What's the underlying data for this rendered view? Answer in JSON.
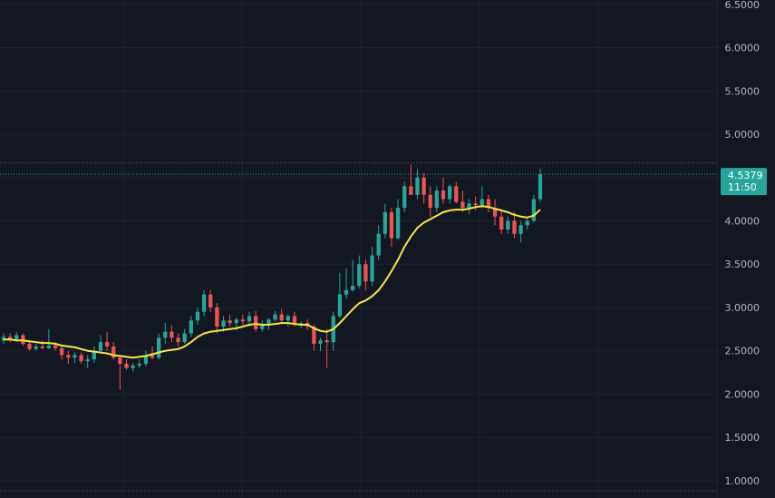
{
  "chart_data": {
    "type": "candlestick",
    "ylim": [
      0.8,
      6.55
    ],
    "y_ticks": [
      "6.5000",
      "6.0000",
      "5.5000",
      "5.0000",
      "4.5000",
      "4.0000",
      "3.5000",
      "3.0000",
      "2.5000",
      "2.0000",
      "1.5000",
      "1.0000"
    ],
    "y_tick_values": [
      6.5,
      6.0,
      5.5,
      5.0,
      4.5,
      4.0,
      3.5,
      3.0,
      2.5,
      2.0,
      1.5,
      1.0
    ],
    "colors": {
      "background": "#131722",
      "grid": "#1e222d",
      "up": "#26a69a",
      "down": "#ef5350",
      "moving_average": "#f5e642",
      "axis_text": "#b2b5be",
      "last_price_badge": "#26a69a"
    },
    "last_price": {
      "value": 4.5379,
      "label": "4.5379",
      "countdown": "11:50"
    },
    "reference_line": 4.67,
    "candles": [
      [
        2.62,
        2.7,
        2.58,
        2.66
      ],
      [
        2.66,
        2.7,
        2.6,
        2.63
      ],
      [
        2.63,
        2.72,
        2.6,
        2.68
      ],
      [
        2.68,
        2.7,
        2.56,
        2.58
      ],
      [
        2.58,
        2.62,
        2.5,
        2.52
      ],
      [
        2.52,
        2.58,
        2.5,
        2.55
      ],
      [
        2.55,
        2.62,
        2.52,
        2.53
      ],
      [
        2.53,
        2.75,
        2.52,
        2.56
      ],
      [
        2.56,
        2.6,
        2.5,
        2.53
      ],
      [
        2.53,
        2.56,
        2.4,
        2.45
      ],
      [
        2.45,
        2.5,
        2.35,
        2.42
      ],
      [
        2.42,
        2.48,
        2.36,
        2.45
      ],
      [
        2.45,
        2.48,
        2.35,
        2.38
      ],
      [
        2.38,
        2.45,
        2.3,
        2.4
      ],
      [
        2.4,
        2.55,
        2.36,
        2.5
      ],
      [
        2.5,
        2.68,
        2.48,
        2.6
      ],
      [
        2.6,
        2.72,
        2.5,
        2.55
      ],
      [
        2.55,
        2.6,
        2.4,
        2.42
      ],
      [
        2.42,
        2.45,
        2.05,
        2.35
      ],
      [
        2.35,
        2.4,
        2.28,
        2.3
      ],
      [
        2.3,
        2.36,
        2.26,
        2.33
      ],
      [
        2.33,
        2.4,
        2.3,
        2.35
      ],
      [
        2.35,
        2.5,
        2.32,
        2.45
      ],
      [
        2.45,
        2.55,
        2.4,
        2.42
      ],
      [
        2.42,
        2.7,
        2.4,
        2.65
      ],
      [
        2.65,
        2.82,
        2.58,
        2.72
      ],
      [
        2.72,
        2.8,
        2.6,
        2.65
      ],
      [
        2.65,
        2.7,
        2.55,
        2.6
      ],
      [
        2.6,
        2.75,
        2.58,
        2.7
      ],
      [
        2.7,
        2.9,
        2.66,
        2.85
      ],
      [
        2.85,
        3.0,
        2.8,
        2.95
      ],
      [
        2.95,
        3.2,
        2.9,
        3.15
      ],
      [
        3.15,
        3.2,
        2.95,
        3.0
      ],
      [
        3.0,
        3.05,
        2.7,
        2.78
      ],
      [
        2.78,
        2.9,
        2.72,
        2.85
      ],
      [
        2.85,
        2.92,
        2.78,
        2.82
      ],
      [
        2.82,
        2.88,
        2.74,
        2.86
      ],
      [
        2.86,
        2.92,
        2.8,
        2.84
      ],
      [
        2.84,
        2.95,
        2.78,
        2.9
      ],
      [
        2.9,
        2.96,
        2.72,
        2.75
      ],
      [
        2.75,
        2.85,
        2.72,
        2.8
      ],
      [
        2.8,
        2.88,
        2.74,
        2.86
      ],
      [
        2.86,
        2.96,
        2.84,
        2.92
      ],
      [
        2.92,
        2.98,
        2.82,
        2.85
      ],
      [
        2.85,
        2.92,
        2.78,
        2.9
      ],
      [
        2.9,
        2.95,
        2.78,
        2.8
      ],
      [
        2.8,
        2.84,
        2.76,
        2.82
      ],
      [
        2.82,
        2.86,
        2.74,
        2.78
      ],
      [
        2.78,
        2.8,
        2.5,
        2.58
      ],
      [
        2.58,
        2.65,
        2.5,
        2.62
      ],
      [
        2.62,
        2.75,
        2.3,
        2.6
      ],
      [
        2.6,
        2.95,
        2.5,
        2.9
      ],
      [
        2.9,
        3.4,
        2.88,
        3.15
      ],
      [
        3.15,
        3.45,
        3.1,
        3.2
      ],
      [
        3.2,
        3.55,
        3.18,
        3.25
      ],
      [
        3.25,
        3.6,
        3.22,
        3.5
      ],
      [
        3.5,
        3.55,
        3.2,
        3.3
      ],
      [
        3.3,
        3.7,
        3.25,
        3.6
      ],
      [
        3.6,
        3.95,
        3.55,
        3.85
      ],
      [
        3.85,
        4.2,
        3.8,
        4.1
      ],
      [
        4.1,
        4.15,
        3.7,
        3.8
      ],
      [
        3.8,
        4.25,
        3.78,
        4.15
      ],
      [
        4.15,
        4.45,
        4.1,
        4.4
      ],
      [
        4.4,
        4.65,
        4.3,
        4.3
      ],
      [
        4.3,
        4.6,
        4.25,
        4.5
      ],
      [
        4.5,
        4.55,
        4.2,
        4.3
      ],
      [
        4.3,
        4.4,
        4.05,
        4.15
      ],
      [
        4.15,
        4.4,
        4.1,
        4.35
      ],
      [
        4.35,
        4.5,
        4.2,
        4.25
      ],
      [
        4.25,
        4.42,
        4.2,
        4.4
      ],
      [
        4.4,
        4.45,
        4.2,
        4.22
      ],
      [
        4.22,
        4.35,
        4.1,
        4.15
      ],
      [
        4.15,
        4.25,
        4.08,
        4.2
      ],
      [
        4.2,
        4.28,
        4.12,
        4.18
      ],
      [
        4.18,
        4.4,
        4.15,
        4.25
      ],
      [
        4.25,
        4.3,
        4.1,
        4.15
      ],
      [
        4.15,
        4.25,
        3.95,
        4.05
      ],
      [
        4.05,
        4.12,
        3.85,
        3.9
      ],
      [
        3.9,
        4.05,
        3.85,
        4.0
      ],
      [
        4.0,
        4.1,
        3.8,
        3.85
      ],
      [
        3.85,
        4.0,
        3.75,
        3.95
      ],
      [
        3.95,
        4.05,
        3.9,
        4.0
      ],
      [
        4.0,
        4.3,
        3.98,
        4.25
      ],
      [
        4.25,
        4.6,
        4.22,
        4.54
      ]
    ],
    "moving_average": [
      2.63,
      2.63,
      2.62,
      2.62,
      2.61,
      2.6,
      2.59,
      2.59,
      2.58,
      2.56,
      2.55,
      2.54,
      2.52,
      2.5,
      2.49,
      2.48,
      2.47,
      2.45,
      2.44,
      2.43,
      2.42,
      2.43,
      2.44,
      2.46,
      2.48,
      2.5,
      2.51,
      2.52,
      2.55,
      2.6,
      2.66,
      2.7,
      2.72,
      2.73,
      2.74,
      2.75,
      2.76,
      2.78,
      2.8,
      2.81,
      2.8,
      2.8,
      2.81,
      2.82,
      2.82,
      2.81,
      2.8,
      2.8,
      2.76,
      2.73,
      2.72,
      2.75,
      2.82,
      2.9,
      2.98,
      3.05,
      3.08,
      3.13,
      3.2,
      3.3,
      3.42,
      3.55,
      3.7,
      3.82,
      3.92,
      3.98,
      4.02,
      4.06,
      4.1,
      4.12,
      4.13,
      4.13,
      4.14,
      4.16,
      4.17,
      4.16,
      4.14,
      4.12,
      4.1,
      4.07,
      4.05,
      4.04,
      4.06,
      4.13
    ]
  }
}
